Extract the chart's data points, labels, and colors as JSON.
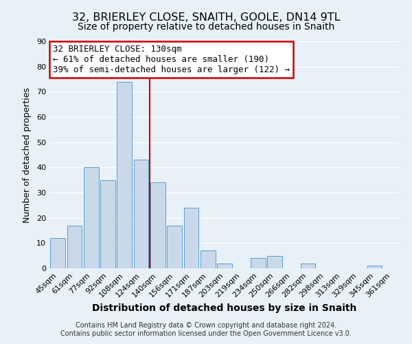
{
  "title": "32, BRIERLEY CLOSE, SNAITH, GOOLE, DN14 9TL",
  "subtitle": "Size of property relative to detached houses in Snaith",
  "xlabel": "Distribution of detached houses by size in Snaith",
  "ylabel": "Number of detached properties",
  "bar_labels": [
    "45sqm",
    "61sqm",
    "77sqm",
    "92sqm",
    "108sqm",
    "124sqm",
    "140sqm",
    "156sqm",
    "171sqm",
    "187sqm",
    "203sqm",
    "219sqm",
    "234sqm",
    "250sqm",
    "266sqm",
    "282sqm",
    "298sqm",
    "313sqm",
    "329sqm",
    "345sqm",
    "361sqm"
  ],
  "bar_values": [
    12,
    17,
    40,
    35,
    74,
    43,
    34,
    17,
    24,
    7,
    2,
    0,
    4,
    5,
    0,
    2,
    0,
    0,
    0,
    1,
    0
  ],
  "bar_color": "#c9d9ea",
  "bar_edge_color": "#5a9fd4",
  "vline_color": "#cc0000",
  "ylim": [
    0,
    90
  ],
  "yticks": [
    0,
    10,
    20,
    30,
    40,
    50,
    60,
    70,
    80,
    90
  ],
  "annotation_line1": "32 BRIERLEY CLOSE: 130sqm",
  "annotation_line2": "← 61% of detached houses are smaller (190)",
  "annotation_line3": "39% of semi-detached houses are larger (122) →",
  "annotation_box_color": "#ffffff",
  "annotation_box_edge": "#cc0000",
  "footer_line1": "Contains HM Land Registry data © Crown copyright and database right 2024.",
  "footer_line2": "Contains public sector information licensed under the Open Government Licence v3.0.",
  "background_color": "#e8f0f8",
  "grid_color": "#ffffff",
  "title_fontsize": 11.5,
  "subtitle_fontsize": 10,
  "xlabel_fontsize": 10,
  "ylabel_fontsize": 9,
  "tick_fontsize": 8,
  "annotation_fontsize": 9,
  "footer_fontsize": 7
}
